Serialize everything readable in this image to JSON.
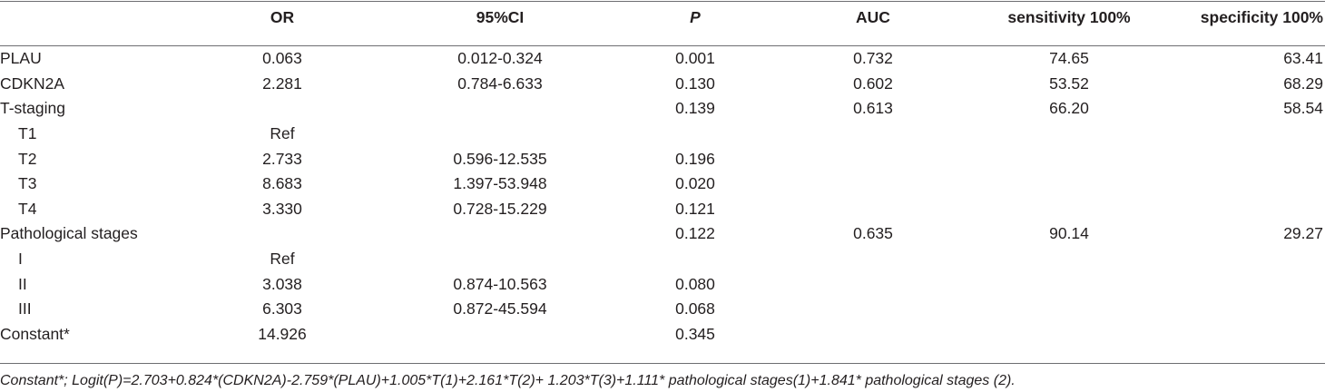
{
  "table": {
    "headers": [
      "",
      "OR",
      "95%CI",
      "P",
      "AUC",
      "sensitivity 100%",
      "specificity 100%"
    ],
    "rows": [
      {
        "label": "PLAU",
        "indent": false,
        "cells": [
          "0.063",
          "0.012-0.324",
          "0.001",
          "0.732",
          "74.65",
          "63.41"
        ]
      },
      {
        "label": "CDKN2A",
        "indent": false,
        "cells": [
          "2.281",
          "0.784-6.633",
          "0.130",
          "0.602",
          "53.52",
          "68.29"
        ]
      },
      {
        "label": "T-staging",
        "indent": false,
        "cells": [
          "",
          "",
          "0.139",
          "0.613",
          "66.20",
          "58.54"
        ]
      },
      {
        "label": "T1",
        "indent": true,
        "cells": [
          "Ref",
          "",
          "",
          "",
          "",
          ""
        ]
      },
      {
        "label": "T2",
        "indent": true,
        "cells": [
          "2.733",
          "0.596-12.535",
          "0.196",
          "",
          "",
          ""
        ]
      },
      {
        "label": "T3",
        "indent": true,
        "cells": [
          "8.683",
          "1.397-53.948",
          "0.020",
          "",
          "",
          ""
        ]
      },
      {
        "label": "T4",
        "indent": true,
        "cells": [
          "3.330",
          "0.728-15.229",
          "0.121",
          "",
          "",
          ""
        ]
      },
      {
        "label": "Pathological stages",
        "indent": false,
        "cells": [
          "",
          "",
          "0.122",
          "0.635",
          "90.14",
          "29.27"
        ]
      },
      {
        "label": "I",
        "indent": true,
        "cells": [
          "Ref",
          "",
          "",
          "",
          "",
          ""
        ]
      },
      {
        "label": "II",
        "indent": true,
        "cells": [
          "3.038",
          "0.874-10.563",
          "0.080",
          "",
          "",
          ""
        ]
      },
      {
        "label": "III",
        "indent": true,
        "cells": [
          "6.303",
          "0.872-45.594",
          "0.068",
          "",
          "",
          ""
        ]
      },
      {
        "label": "Constant*",
        "indent": false,
        "cells": [
          "14.926",
          "",
          "0.345",
          "",
          "",
          ""
        ]
      }
    ]
  },
  "footnote": "Constant*; Logit(P)=2.703+0.824*(CDKN2A)-2.759*(PLAU)+1.005*T(1)+2.161*T(2)+ 1.203*T(3)+1.111* pathological stages(1)+1.841* pathological stages (2)."
}
